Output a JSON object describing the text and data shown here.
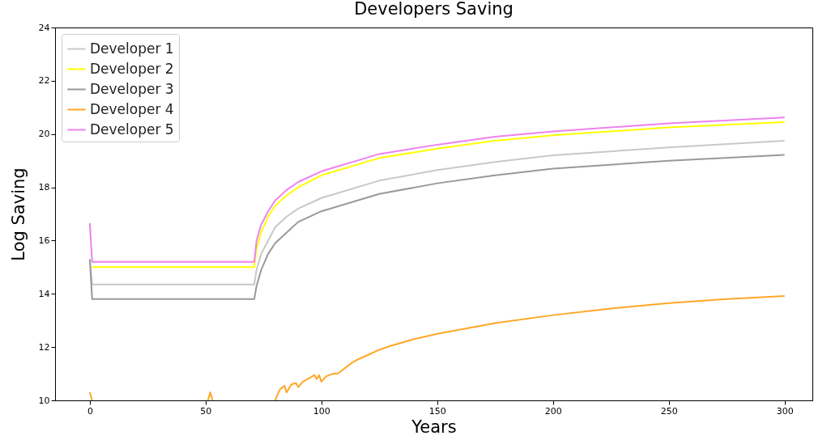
{
  "chart_data": {
    "type": "line",
    "title": "Developers Saving",
    "xlabel": "Years",
    "ylabel": "Log Saving",
    "xlim": [
      -15,
      312
    ],
    "ylim": [
      10,
      24
    ],
    "xticks": [
      0,
      50,
      100,
      150,
      200,
      250,
      300
    ],
    "yticks": [
      10,
      12,
      14,
      16,
      18,
      20,
      22,
      24
    ],
    "grid": false,
    "legend": "top left",
    "series": [
      {
        "name": "Developer 1",
        "color": "#c8c8c8",
        "x": [
          0,
          1,
          71,
          72,
          74,
          77,
          80,
          85,
          90,
          100,
          125,
          150,
          175,
          200,
          250,
          300
        ],
        "values": [
          15.3,
          14.35,
          14.35,
          14.9,
          15.5,
          16.0,
          16.5,
          16.9,
          17.2,
          17.6,
          18.25,
          18.65,
          18.95,
          19.2,
          19.5,
          19.75
        ]
      },
      {
        "name": "Developer 2",
        "color": "#ffff00",
        "x": [
          1,
          71,
          72,
          74,
          77,
          80,
          85,
          90,
          100,
          125,
          150,
          175,
          200,
          250,
          300
        ],
        "values": [
          15.0,
          15.0,
          15.7,
          16.3,
          16.9,
          17.3,
          17.7,
          18.0,
          18.45,
          19.1,
          19.45,
          19.75,
          19.95,
          20.25,
          20.45
        ]
      },
      {
        "name": "Developer 3",
        "color": "#999999",
        "x": [
          0,
          1,
          71,
          72,
          74,
          77,
          80,
          85,
          90,
          100,
          125,
          150,
          175,
          200,
          250,
          300
        ],
        "values": [
          15.3,
          13.8,
          13.8,
          14.3,
          14.9,
          15.5,
          15.9,
          16.3,
          16.7,
          17.1,
          17.75,
          18.15,
          18.45,
          18.7,
          19.0,
          19.22
        ]
      },
      {
        "name": "Developer 4",
        "color": "#ffa726",
        "x": [
          0,
          1,
          2,
          51,
          52,
          53,
          54,
          80,
          82,
          84,
          85,
          87,
          89,
          90,
          92,
          95,
          97,
          98,
          99,
          100,
          102,
          105,
          107,
          110,
          113,
          116,
          120,
          125,
          130,
          140,
          150,
          175,
          200,
          225,
          250,
          275,
          300
        ],
        "values": [
          10.3,
          10,
          null,
          10,
          10.3,
          10,
          null,
          10,
          10.4,
          10.55,
          10.3,
          10.6,
          10.65,
          10.5,
          10.7,
          10.85,
          10.95,
          10.8,
          10.95,
          10.7,
          10.9,
          11.0,
          11.0,
          11.2,
          11.4,
          11.55,
          11.7,
          11.9,
          12.05,
          12.3,
          12.5,
          12.9,
          13.2,
          13.45,
          13.65,
          13.8,
          13.92
        ]
      },
      {
        "name": "Developer 5",
        "color": "#ee82ee",
        "x": [
          0,
          1,
          71,
          72,
          74,
          77,
          80,
          85,
          90,
          100,
          125,
          150,
          175,
          200,
          250,
          300
        ],
        "values": [
          16.65,
          15.2,
          15.2,
          16.0,
          16.6,
          17.1,
          17.5,
          17.9,
          18.2,
          18.6,
          19.25,
          19.6,
          19.9,
          20.1,
          20.4,
          20.62
        ]
      }
    ]
  }
}
